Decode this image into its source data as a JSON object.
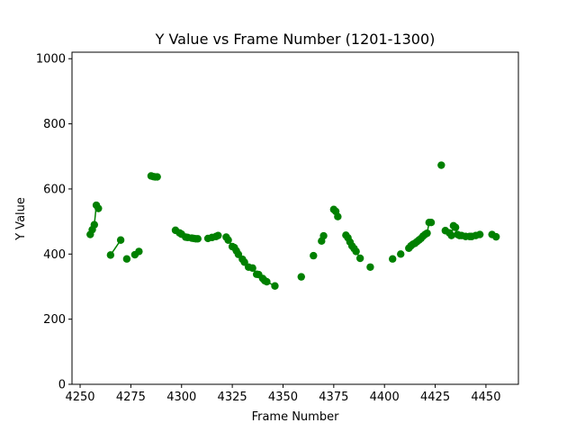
{
  "chart_data": {
    "type": "line",
    "title": "Y Value vs Frame Number (1201-1300)",
    "xlabel": "Frame Number",
    "ylabel": "Y Value",
    "xlim": [
      4246,
      4466
    ],
    "ylim": [
      0,
      1020
    ],
    "xticks": [
      4250,
      4275,
      4300,
      4325,
      4350,
      4375,
      4400,
      4425,
      4450
    ],
    "yticks": [
      0,
      200,
      400,
      600,
      800,
      1000
    ],
    "grid": false,
    "legend": "none",
    "color": "#008000",
    "segments": [
      {
        "points": [
          [
            4255,
            460
          ],
          [
            4256,
            475
          ],
          [
            4257,
            490
          ],
          [
            4258,
            550
          ],
          [
            4259,
            540
          ]
        ]
      },
      {
        "points": [
          [
            4265,
            397
          ],
          [
            4270,
            443
          ]
        ]
      },
      {
        "points": [
          [
            4273,
            385
          ]
        ]
      },
      {
        "points": [
          [
            4277,
            398
          ],
          [
            4279,
            408
          ]
        ]
      },
      {
        "points": [
          [
            4285,
            640
          ],
          [
            4286,
            638
          ],
          [
            4287,
            637
          ],
          [
            4288,
            637
          ]
        ]
      },
      {
        "points": [
          [
            4297,
            473
          ],
          [
            4299,
            465
          ],
          [
            4300,
            461
          ],
          [
            4302,
            452
          ],
          [
            4303,
            451
          ],
          [
            4305,
            449
          ],
          [
            4306,
            448
          ],
          [
            4307,
            447
          ],
          [
            4308,
            447
          ]
        ]
      },
      {
        "points": [
          [
            4313,
            448
          ],
          [
            4315,
            451
          ],
          [
            4317,
            454
          ],
          [
            4318,
            457
          ]
        ]
      },
      {
        "points": [
          [
            4322,
            452
          ],
          [
            4323,
            443
          ],
          [
            4325,
            423
          ],
          [
            4326,
            420
          ],
          [
            4327,
            410
          ],
          [
            4328,
            399
          ],
          [
            4330,
            384
          ],
          [
            4331,
            375
          ],
          [
            4333,
            360
          ],
          [
            4335,
            357
          ],
          [
            4337,
            338
          ],
          [
            4338,
            337
          ],
          [
            4340,
            325
          ],
          [
            4341,
            318
          ],
          [
            4342,
            315
          ],
          [
            4346,
            302
          ]
        ]
      },
      {
        "points": [
          [
            4359,
            330
          ]
        ]
      },
      {
        "points": [
          [
            4365,
            395
          ]
        ]
      },
      {
        "points": [
          [
            4369,
            440
          ],
          [
            4370,
            456
          ]
        ]
      },
      {
        "points": [
          [
            4375,
            537
          ],
          [
            4376,
            531
          ],
          [
            4377,
            515
          ]
        ]
      },
      {
        "points": [
          [
            4381,
            458
          ],
          [
            4382,
            450
          ],
          [
            4383,
            437
          ],
          [
            4384,
            425
          ],
          [
            4385,
            417
          ],
          [
            4386,
            408
          ],
          [
            4388,
            387
          ]
        ]
      },
      {
        "points": [
          [
            4393,
            360
          ]
        ]
      },
      {
        "points": [
          [
            4404,
            385
          ]
        ]
      },
      {
        "points": [
          [
            4408,
            400
          ]
        ]
      },
      {
        "points": [
          [
            4412,
            418
          ],
          [
            4413,
            425
          ],
          [
            4414,
            430
          ],
          [
            4415,
            433
          ],
          [
            4416,
            438
          ],
          [
            4417,
            443
          ],
          [
            4418,
            448
          ],
          [
            4419,
            455
          ],
          [
            4420,
            460
          ],
          [
            4421,
            464
          ],
          [
            4422,
            497
          ],
          [
            4423,
            497
          ]
        ]
      },
      {
        "points": [
          [
            4428,
            673
          ]
        ]
      },
      {
        "points": [
          [
            4430,
            472
          ],
          [
            4432,
            465
          ],
          [
            4433,
            457
          ],
          [
            4434,
            487
          ],
          [
            4435,
            482
          ],
          [
            4436,
            460
          ],
          [
            4437,
            457
          ],
          [
            4438,
            457
          ],
          [
            4440,
            454
          ],
          [
            4442,
            454
          ],
          [
            4443,
            454
          ],
          [
            4445,
            457
          ],
          [
            4447,
            460
          ]
        ]
      },
      {
        "points": [
          [
            4453,
            460
          ],
          [
            4455,
            453
          ]
        ]
      }
    ]
  }
}
